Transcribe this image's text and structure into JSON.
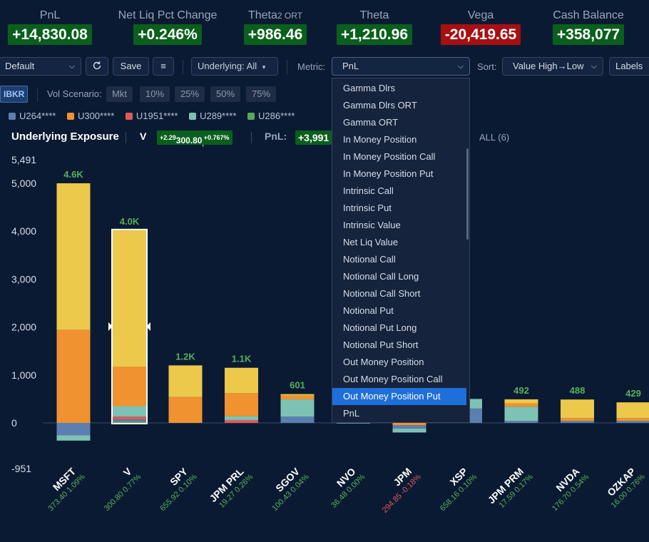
{
  "metrics": [
    {
      "label": "PnL",
      "value": "+14,830.08",
      "kind": "pos"
    },
    {
      "label": "Net Liq Pct Change",
      "value": "+0.246%",
      "kind": "pos"
    },
    {
      "label": "Theta",
      "sub": "2",
      "label2": " ORT",
      "value": "+986.46",
      "kind": "pos"
    },
    {
      "label": "Theta",
      "value": "+1,210.96",
      "kind": "pos"
    },
    {
      "label": "Vega",
      "value": "-20,419.65",
      "kind": "neg"
    },
    {
      "label": "Cash Balance",
      "value": "+358,077",
      "kind": "pos"
    }
  ],
  "toolbar": {
    "profile_value": "Default",
    "refresh_icon": "refresh-icon",
    "save_label": "Save",
    "menu_icon": "hamburger-icon",
    "underlying_label": "Underlying: All",
    "metric_label": "Metric:",
    "metric_value": "PnL",
    "sort_label": "Sort:",
    "sort_value": "Value High→Low",
    "labels_label": "Labels"
  },
  "row2": {
    "broker": "IBKR",
    "vol_label": "Vol Scenario:",
    "vol_options": [
      "Mkt",
      "10%",
      "25%",
      "50%",
      "75%"
    ]
  },
  "legend": [
    {
      "name": "U264****",
      "color": "#5b7fb0"
    },
    {
      "name": "U300****",
      "color": "#f0922f"
    },
    {
      "name": "U1951****",
      "color": "#e05a5a"
    },
    {
      "name": "U289****",
      "color": "#7ec2b4"
    },
    {
      "name": "U286****",
      "color": "#58a85a"
    }
  ],
  "exposure": {
    "title": "Underlying Exposure",
    "symbol": "V",
    "price_change": "+2.29",
    "price": "300.80",
    "price_pct": "+0.767%",
    "pnl_label": "PnL:",
    "pnl_value": "+3,991",
    "all_label": "ALL (6)"
  },
  "dropdown": {
    "items": [
      "Gamma Dlrs",
      "Gamma Dlrs ORT",
      "Gamma ORT",
      "In Money Position",
      "In Money Position Call",
      "In Money Position Put",
      "Intrinsic Call",
      "Intrinsic Put",
      "Intrinsic Value",
      "Net Liq Value",
      "Notional Call",
      "Notional Call Long",
      "Notional Call Short",
      "Notional Put",
      "Notional Put Long",
      "Notional Put Short",
      "Out Money Position",
      "Out Money Position Call",
      "Out Money Position Put",
      "PnL"
    ],
    "selected": "Out Money Position Put"
  },
  "chart_data": {
    "type": "bar",
    "stacked": true,
    "ylim": [
      -951,
      5491
    ],
    "yticks": [
      "5,491",
      "5,000",
      "4,000",
      "3,000",
      "2,000",
      "1,000",
      "0",
      "-951"
    ],
    "ytick_values": [
      5491,
      5000,
      4000,
      3000,
      2000,
      1000,
      0,
      -951
    ],
    "series_colors": {
      "U264****": "#5b7fb0",
      "U300****": "#f0922f",
      "U1951****": "#e05a5a",
      "U289****": "#7ec2b4",
      "U286****": "#58a85a",
      "Other": "#ecc94b"
    },
    "bars": [
      {
        "name": "MSFT",
        "total_label": "4.6K",
        "price": "373.40",
        "pct": "1.09%",
        "pct_color": "pos",
        "selected": false,
        "segments": [
          {
            "s": "U264****",
            "v": -260
          },
          {
            "s": "U289****",
            "v": -110
          },
          {
            "s": "U300****",
            "v": 1940
          },
          {
            "s": "Other",
            "v": 3060
          }
        ]
      },
      {
        "name": "V",
        "total_label": "4.0K",
        "price": "300.80",
        "pct": "0.77%",
        "pct_color": "pos",
        "selected": true,
        "segments": [
          {
            "s": "U286****",
            "v": 30
          },
          {
            "s": "U264****",
            "v": 40
          },
          {
            "s": "U1951****",
            "v": 60
          },
          {
            "s": "U289****",
            "v": 220
          },
          {
            "s": "U300****",
            "v": 820
          },
          {
            "s": "Other",
            "v": 2850
          }
        ]
      },
      {
        "name": "SPY",
        "total_label": "1.2K",
        "price": "655.92",
        "pct": "0.10%",
        "pct_color": "pos",
        "selected": false,
        "segments": [
          {
            "s": "U300****",
            "v": 540
          },
          {
            "s": "Other",
            "v": 660
          }
        ]
      },
      {
        "name": "JPM PRL",
        "total_label": "1.1K",
        "price": "19.27",
        "pct": "0.26%",
        "pct_color": "pos",
        "selected": false,
        "segments": [
          {
            "s": "U1951****",
            "v": 60
          },
          {
            "s": "U289****",
            "v": 80
          },
          {
            "s": "U300****",
            "v": 480
          },
          {
            "s": "Other",
            "v": 530
          }
        ]
      },
      {
        "name": "SGOV",
        "total_label": "601",
        "price": "100.43",
        "pct": "0.04%",
        "pct_color": "pos",
        "selected": false,
        "segments": [
          {
            "s": "U264****",
            "v": 130
          },
          {
            "s": "U289****",
            "v": 360
          },
          {
            "s": "U300****",
            "v": 80
          },
          {
            "s": "Other",
            "v": 31
          }
        ]
      },
      {
        "name": "NVO",
        "total_label": "",
        "price": "36.48",
        "pct": "0.00%",
        "pct_color": "pos",
        "selected": false,
        "segments": [
          {
            "s": "U264****",
            "v": -10
          },
          {
            "s": "U289****",
            "v": 10
          }
        ]
      },
      {
        "name": "JPM",
        "total_label": "",
        "price": "294.85",
        "pct": "-0.18%",
        "pct_color": "neg",
        "selected": false,
        "segments": [
          {
            "s": "U300****",
            "v": -50
          },
          {
            "s": "U264****",
            "v": -70
          },
          {
            "s": "U289****",
            "v": -80
          }
        ]
      },
      {
        "name": "XSP",
        "total_label": "",
        "price": "658.16",
        "pct": "0.10%",
        "pct_color": "pos",
        "selected": false,
        "segments": [
          {
            "s": "U264****",
            "v": 300
          },
          {
            "s": "U289****",
            "v": 200
          }
        ]
      },
      {
        "name": "JPM PRM",
        "total_label": "492",
        "price": "17.59",
        "pct": "0.17%",
        "pct_color": "pos",
        "selected": false,
        "segments": [
          {
            "s": "U264****",
            "v": 40
          },
          {
            "s": "U289****",
            "v": 300
          },
          {
            "s": "U300****",
            "v": 70
          },
          {
            "s": "Other",
            "v": 82
          }
        ]
      },
      {
        "name": "NVDA",
        "total_label": "488",
        "price": "176.70",
        "pct": "0.54%",
        "pct_color": "pos",
        "selected": false,
        "segments": [
          {
            "s": "U264****",
            "v": 40
          },
          {
            "s": "U300****",
            "v": 60
          },
          {
            "s": "Other",
            "v": 388
          }
        ]
      },
      {
        "name": "OZKAP",
        "total_label": "429",
        "price": "16.00",
        "pct": "0.76%",
        "pct_color": "pos",
        "selected": false,
        "segments": [
          {
            "s": "U264****",
            "v": 40
          },
          {
            "s": "U300****",
            "v": 60
          },
          {
            "s": "Other",
            "v": 329
          }
        ]
      }
    ]
  }
}
